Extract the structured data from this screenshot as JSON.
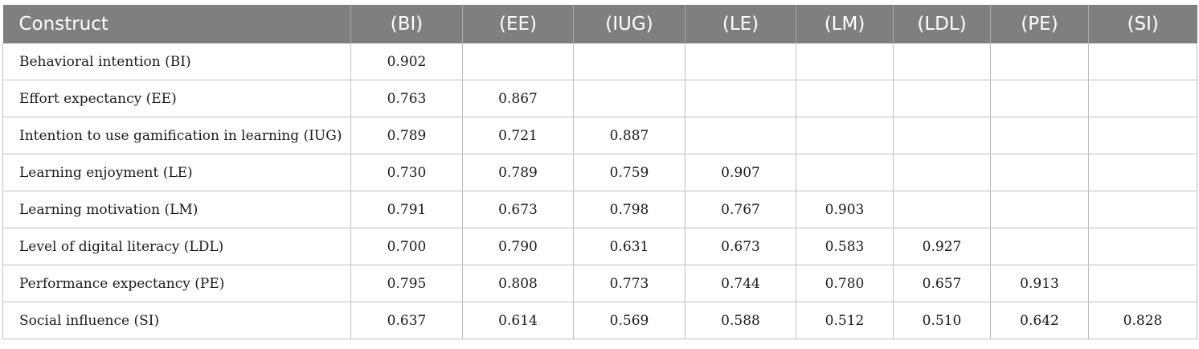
{
  "table": {
    "headers": [
      "Construct",
      "(BI)",
      "(EE)",
      "(IUG)",
      "(LE)",
      "(LM)",
      "(LDL)",
      "(PE)",
      "(SI)"
    ],
    "rows": [
      {
        "label": "Behavioral intention (BI)",
        "values": [
          "0.902",
          "",
          "",
          "",
          "",
          "",
          "",
          ""
        ]
      },
      {
        "label": "Effort expectancy (EE)",
        "values": [
          "0.763",
          "0.867",
          "",
          "",
          "",
          "",
          "",
          ""
        ]
      },
      {
        "label": "Intention to use gamification in learning (IUG)",
        "values": [
          "0.789",
          "0.721",
          "0.887",
          "",
          "",
          "",
          "",
          ""
        ]
      },
      {
        "label": "Learning enjoyment (LE)",
        "values": [
          "0.730",
          "0.789",
          "0.759",
          "0.907",
          "",
          "",
          "",
          ""
        ]
      },
      {
        "label": "Learning motivation (LM)",
        "values": [
          "0.791",
          "0.673",
          "0.798",
          "0.767",
          "0.903",
          "",
          "",
          ""
        ]
      },
      {
        "label": "Level of digital literacy (LDL)",
        "values": [
          "0.700",
          "0.790",
          "0.631",
          "0.673",
          "0.583",
          "0.927",
          "",
          ""
        ]
      },
      {
        "label": "Performance expectancy (PE)",
        "values": [
          "0.795",
          "0.808",
          "0.773",
          "0.744",
          "0.780",
          "0.657",
          "0.913",
          ""
        ]
      },
      {
        "label": "Social influence (SI)",
        "values": [
          "0.637",
          "0.614",
          "0.569",
          "0.588",
          "0.512",
          "0.510",
          "0.642",
          "0.828"
        ]
      }
    ]
  }
}
